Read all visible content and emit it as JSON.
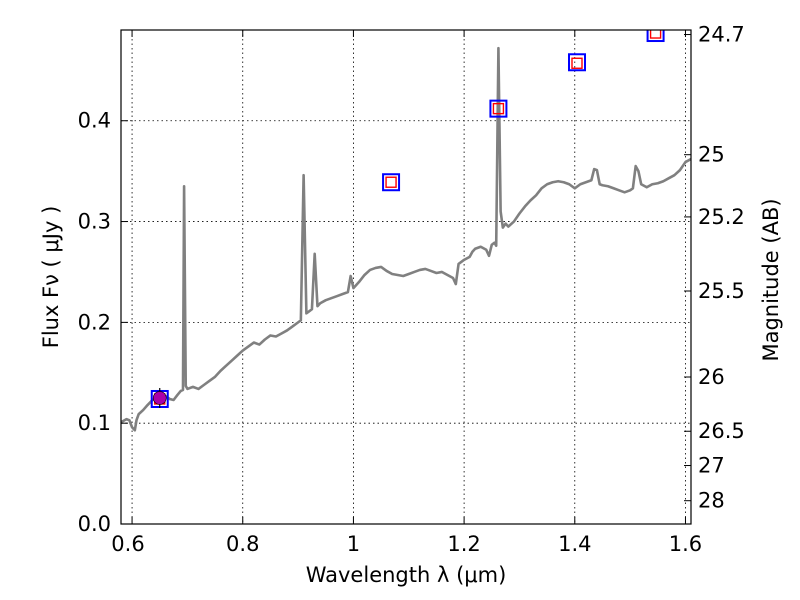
{
  "chart_data": {
    "type": "line",
    "title": "",
    "xlabel": "Wavelength  λ (μm)",
    "ylabel": "Flux  Fν  ( μJy )",
    "y2label": "Magnitude (AB)",
    "xlim": [
      0.58,
      1.61
    ],
    "ylim": [
      0.0,
      0.49
    ],
    "grid": true,
    "x_ticks": [
      {
        "value": 0.6,
        "label": ""
      },
      {
        "value": 0.8,
        "label": "0.8"
      },
      {
        "value": 1.0,
        "label": "1"
      },
      {
        "value": 1.2,
        "label": "1.2"
      },
      {
        "value": 1.4,
        "label": "1.4"
      },
      {
        "value": 1.6,
        "label": "1.6"
      }
    ],
    "y_ticks": [
      {
        "value": 0.0,
        "label": "0.0"
      },
      {
        "value": 0.1,
        "label": "0.1"
      },
      {
        "value": 0.2,
        "label": "0.2"
      },
      {
        "value": 0.3,
        "label": "0.3"
      },
      {
        "value": 0.4,
        "label": "0.4"
      }
    ],
    "x_edge_labels": [
      "0.6"
    ],
    "y2_ticks": [
      {
        "label": "24.7",
        "flux": 0.4855
      },
      {
        "label": "25",
        "flux": 0.3663
      },
      {
        "label": "25.2",
        "flux": 0.3046
      },
      {
        "label": "25.5",
        "flux": 0.2311
      },
      {
        "label": "26",
        "flux": 0.1458
      },
      {
        "label": "26.5",
        "flux": 0.092
      },
      {
        "label": "27",
        "flux": 0.058
      },
      {
        "label": "28",
        "flux": 0.0231
      }
    ],
    "series": [
      {
        "name": "spectrum",
        "style": "line",
        "color": "#808080",
        "points": [
          [
            0.58,
            0.101
          ],
          [
            0.59,
            0.104
          ],
          [
            0.595,
            0.103
          ],
          [
            0.6,
            0.096
          ],
          [
            0.605,
            0.093
          ],
          [
            0.608,
            0.103
          ],
          [
            0.612,
            0.109
          ],
          [
            0.62,
            0.113
          ],
          [
            0.628,
            0.118
          ],
          [
            0.635,
            0.122
          ],
          [
            0.642,
            0.125
          ],
          [
            0.65,
            0.127
          ],
          [
            0.66,
            0.127
          ],
          [
            0.668,
            0.124
          ],
          [
            0.675,
            0.123
          ],
          [
            0.682,
            0.128
          ],
          [
            0.688,
            0.132
          ],
          [
            0.692,
            0.133
          ],
          [
            0.694,
            0.335
          ],
          [
            0.697,
            0.137
          ],
          [
            0.7,
            0.134
          ],
          [
            0.71,
            0.136
          ],
          [
            0.72,
            0.134
          ],
          [
            0.73,
            0.138
          ],
          [
            0.74,
            0.142
          ],
          [
            0.75,
            0.146
          ],
          [
            0.76,
            0.152
          ],
          [
            0.77,
            0.157
          ],
          [
            0.78,
            0.162
          ],
          [
            0.79,
            0.167
          ],
          [
            0.8,
            0.172
          ],
          [
            0.81,
            0.176
          ],
          [
            0.82,
            0.18
          ],
          [
            0.83,
            0.178
          ],
          [
            0.84,
            0.183
          ],
          [
            0.85,
            0.187
          ],
          [
            0.86,
            0.186
          ],
          [
            0.87,
            0.189
          ],
          [
            0.88,
            0.192
          ],
          [
            0.89,
            0.196
          ],
          [
            0.9,
            0.2
          ],
          [
            0.905,
            0.202
          ],
          [
            0.91,
            0.346
          ],
          [
            0.915,
            0.209
          ],
          [
            0.92,
            0.211
          ],
          [
            0.925,
            0.213
          ],
          [
            0.93,
            0.268
          ],
          [
            0.935,
            0.216
          ],
          [
            0.94,
            0.219
          ],
          [
            0.95,
            0.222
          ],
          [
            0.96,
            0.224
          ],
          [
            0.97,
            0.226
          ],
          [
            0.98,
            0.228
          ],
          [
            0.99,
            0.23
          ],
          [
            0.995,
            0.246
          ],
          [
            1.0,
            0.234
          ],
          [
            1.01,
            0.24
          ],
          [
            1.02,
            0.247
          ],
          [
            1.03,
            0.252
          ],
          [
            1.04,
            0.254
          ],
          [
            1.05,
            0.255
          ],
          [
            1.06,
            0.251
          ],
          [
            1.07,
            0.248
          ],
          [
            1.08,
            0.247
          ],
          [
            1.09,
            0.246
          ],
          [
            1.1,
            0.248
          ],
          [
            1.11,
            0.25
          ],
          [
            1.12,
            0.252
          ],
          [
            1.13,
            0.253
          ],
          [
            1.14,
            0.251
          ],
          [
            1.15,
            0.249
          ],
          [
            1.16,
            0.25
          ],
          [
            1.17,
            0.247
          ],
          [
            1.18,
            0.244
          ],
          [
            1.185,
            0.238
          ],
          [
            1.19,
            0.258
          ],
          [
            1.2,
            0.262
          ],
          [
            1.21,
            0.265
          ],
          [
            1.215,
            0.27
          ],
          [
            1.22,
            0.273
          ],
          [
            1.23,
            0.275
          ],
          [
            1.24,
            0.272
          ],
          [
            1.245,
            0.266
          ],
          [
            1.25,
            0.277
          ],
          [
            1.255,
            0.279
          ],
          [
            1.258,
            0.276
          ],
          [
            1.262,
            0.472
          ],
          [
            1.266,
            0.31
          ],
          [
            1.27,
            0.294
          ],
          [
            1.275,
            0.298
          ],
          [
            1.28,
            0.295
          ],
          [
            1.29,
            0.3
          ],
          [
            1.3,
            0.308
          ],
          [
            1.31,
            0.315
          ],
          [
            1.32,
            0.321
          ],
          [
            1.33,
            0.326
          ],
          [
            1.34,
            0.333
          ],
          [
            1.35,
            0.337
          ],
          [
            1.36,
            0.339
          ],
          [
            1.37,
            0.34
          ],
          [
            1.38,
            0.339
          ],
          [
            1.39,
            0.337
          ],
          [
            1.4,
            0.333
          ],
          [
            1.41,
            0.337
          ],
          [
            1.42,
            0.339
          ],
          [
            1.43,
            0.341
          ],
          [
            1.435,
            0.352
          ],
          [
            1.44,
            0.351
          ],
          [
            1.445,
            0.337
          ],
          [
            1.45,
            0.336
          ],
          [
            1.46,
            0.335
          ],
          [
            1.47,
            0.333
          ],
          [
            1.48,
            0.331
          ],
          [
            1.49,
            0.329
          ],
          [
            1.5,
            0.331
          ],
          [
            1.505,
            0.333
          ],
          [
            1.51,
            0.355
          ],
          [
            1.515,
            0.35
          ],
          [
            1.52,
            0.337
          ],
          [
            1.53,
            0.334
          ],
          [
            1.54,
            0.337
          ],
          [
            1.55,
            0.338
          ],
          [
            1.56,
            0.34
          ],
          [
            1.57,
            0.343
          ],
          [
            1.58,
            0.346
          ],
          [
            1.59,
            0.351
          ],
          [
            1.6,
            0.359
          ],
          [
            1.61,
            0.362
          ]
        ]
      },
      {
        "name": "photometry-blue-squares",
        "style": "square-marker",
        "color": "#0000ff",
        "points": [
          [
            0.65,
            0.124
          ],
          [
            1.068,
            0.339
          ],
          [
            1.262,
            0.412
          ],
          [
            1.404,
            0.458
          ],
          [
            1.546,
            0.487
          ]
        ]
      },
      {
        "name": "model-red-squares",
        "style": "square-marker",
        "color": "#ff0000",
        "points": [
          [
            0.65,
            0.124
          ],
          [
            1.068,
            0.339
          ],
          [
            1.262,
            0.412
          ],
          [
            1.404,
            0.457
          ],
          [
            1.546,
            0.487
          ]
        ]
      },
      {
        "name": "measured-purple-point",
        "style": "circle-marker",
        "color": "#aa00aa",
        "points": [
          [
            0.65,
            0.125
          ]
        ]
      }
    ]
  }
}
